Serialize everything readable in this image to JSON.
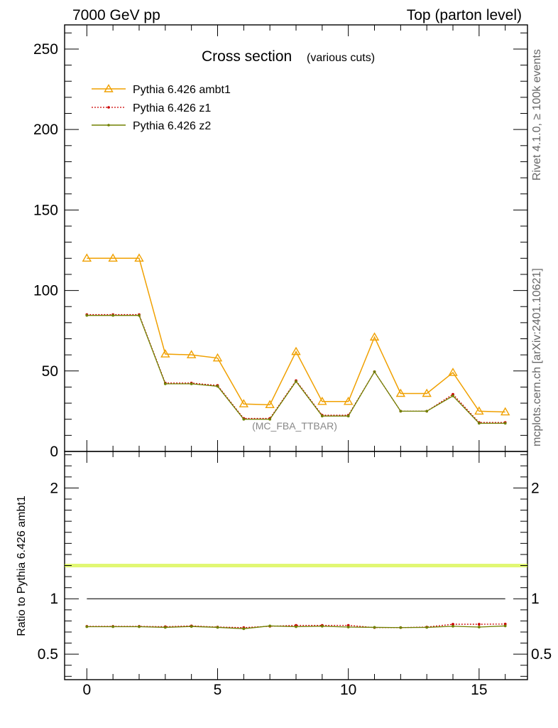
{
  "header": {
    "energy_label": "7000 GeV pp",
    "process_label": "Top (parton level)"
  },
  "side_text": {
    "rivet": "Rivet 4.1.0, ≥ 100k events",
    "mcplots": "mcplots.cern.ch [arXiv:2401.10621]"
  },
  "chart_data": {
    "type": "line",
    "title": "Cross section",
    "subtitle": "(various cuts)",
    "analysis_label": "(MC_FBA_TTBAR)",
    "x": [
      0,
      1,
      2,
      3,
      4,
      5,
      6,
      7,
      8,
      9,
      10,
      11,
      12,
      13,
      14,
      15,
      16
    ],
    "xlim": [
      -0.85,
      16.85
    ],
    "xticks": [
      "0",
      "5",
      "10",
      "15"
    ],
    "ylim": [
      0,
      265
    ],
    "yticks": [
      "0",
      "50",
      "100",
      "150",
      "200",
      "250"
    ],
    "legend_position": "top-left",
    "series": [
      {
        "name": "Pythia 6.426 ambt1",
        "color": "#f0a000",
        "marker": "triangle",
        "style": "solid",
        "values": [
          120,
          120,
          120,
          60.5,
          60,
          58,
          29.5,
          29,
          62,
          31,
          31,
          71,
          36,
          36,
          49,
          25,
          24.5
        ]
      },
      {
        "name": "Pythia 6.426 z1",
        "color": "#cc0000",
        "marker": "dot",
        "style": "dotted",
        "values": [
          85,
          85,
          85,
          42.5,
          42.5,
          41,
          20.5,
          20.5,
          44,
          22.5,
          22.5,
          49.5,
          25,
          25,
          35.5,
          18,
          18
        ]
      },
      {
        "name": "Pythia 6.426 z2",
        "color": "#708000",
        "marker": "dot",
        "style": "solid",
        "values": [
          84.5,
          84.5,
          84.5,
          42,
          42,
          40.5,
          20,
          20,
          43.5,
          22,
          22,
          49.5,
          25,
          25,
          34.5,
          17.5,
          17.5
        ]
      }
    ],
    "ratio": {
      "ylabel": "Ratio to Pythia 6.426 ambt1",
      "ylim": [
        0.27,
        2.33
      ],
      "yticks": [
        "0.5",
        "1",
        "2"
      ],
      "series": [
        {
          "name": "Pythia 6.426 ambt1",
          "values": [
            1,
            1,
            1,
            1,
            1,
            1,
            1,
            1,
            1,
            1,
            1,
            1,
            1,
            1,
            1,
            1,
            1
          ]
        },
        {
          "name": "Pythia 6.426 z1",
          "values": [
            0.751,
            0.751,
            0.751,
            0.748,
            0.755,
            0.745,
            0.74,
            0.752,
            0.76,
            0.76,
            0.76,
            0.74,
            0.74,
            0.745,
            0.77,
            0.77,
            0.772
          ]
        },
        {
          "name": "Pythia 6.426 z2",
          "values": [
            0.748,
            0.748,
            0.748,
            0.742,
            0.75,
            0.742,
            0.73,
            0.755,
            0.748,
            0.752,
            0.745,
            0.742,
            0.74,
            0.742,
            0.752,
            0.745,
            0.755
          ]
        }
      ]
    }
  }
}
